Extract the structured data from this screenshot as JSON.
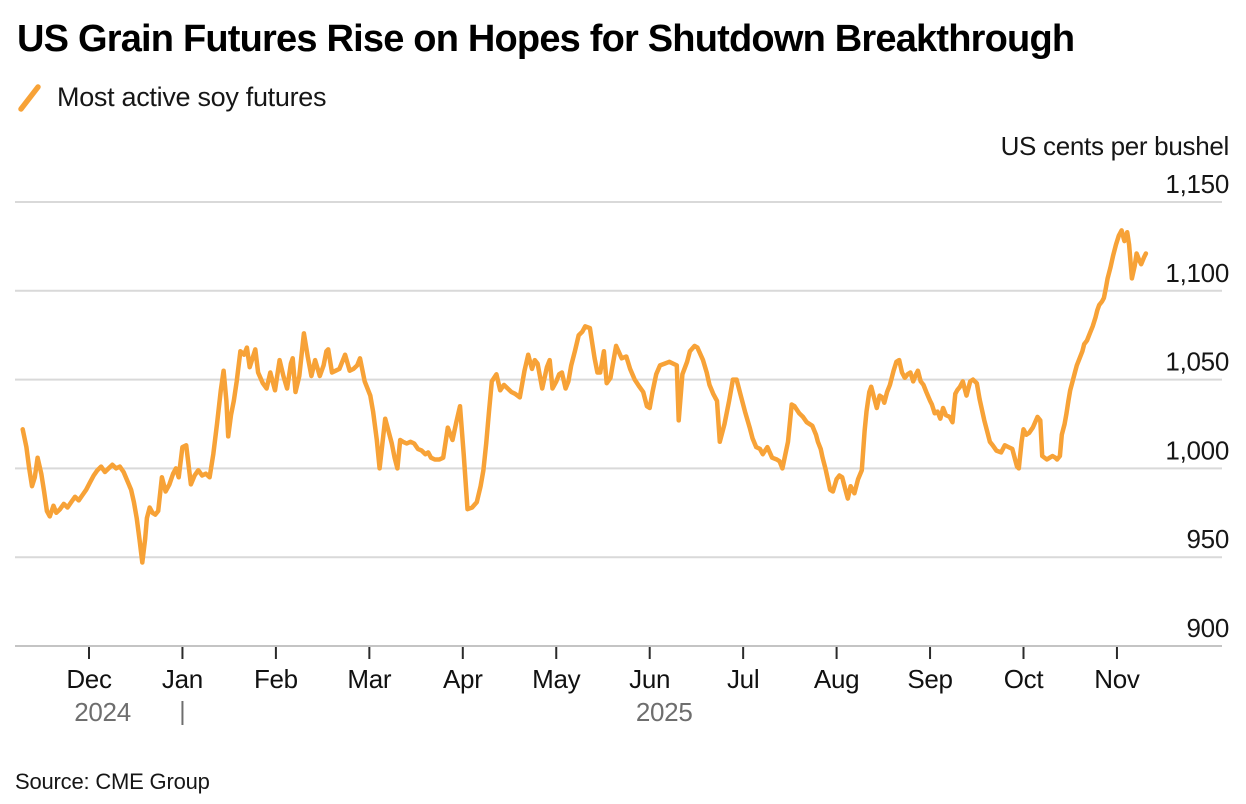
{
  "header": {
    "title": "US Grain Futures Rise on Hopes for Shutdown Breakthrough"
  },
  "legend": {
    "label": "Most active soy futures"
  },
  "axis": {
    "unit_label": "US cents per bushel",
    "y_ticks": [
      {
        "label": "1,150",
        "value": 1150
      },
      {
        "label": "1,100",
        "value": 1100
      },
      {
        "label": "1,050",
        "value": 1050
      },
      {
        "label": "1,000",
        "value": 1000
      },
      {
        "label": "950",
        "value": 950
      },
      {
        "label": "900",
        "value": 900
      }
    ],
    "x_months": [
      "Dec",
      "Jan",
      "Feb",
      "Mar",
      "Apr",
      "May",
      "Jun",
      "Jul",
      "Aug",
      "Sep",
      "Oct",
      "Nov"
    ],
    "years": [
      {
        "label": "2024"
      },
      {
        "label": "2025"
      }
    ],
    "year_divider": "|"
  },
  "source": {
    "text": "Source: CME Group"
  },
  "colors": {
    "line": "#F7A237",
    "grid": "#D9D9D9",
    "axis_line": "#C4C4C4",
    "tick": "#2B2B2B",
    "month_text": "#111111",
    "year_text": "#6E6E6E",
    "label_text": "#161616"
  },
  "chart_data": {
    "type": "line",
    "title": "US Grain Futures Rise on Hopes for Shutdown Breakthrough",
    "series_name": "Most active soy futures",
    "ylabel": "US cents per bushel",
    "ylim": [
      900,
      1150
    ],
    "y_gridlines": [
      900,
      950,
      1000,
      1050,
      1100,
      1150
    ],
    "legend_position": "top-left",
    "x_unit": "months_since_Dec_1_2024",
    "x_range": [
      -0.71,
      11.31
    ],
    "x_tick_months": [
      "Dec",
      "Jan",
      "Feb",
      "Mar",
      "Apr",
      "May",
      "Jun",
      "Jul",
      "Aug",
      "Sep",
      "Oct",
      "Nov"
    ],
    "points": [
      [
        -0.71,
        1022
      ],
      [
        -0.67,
        1012
      ],
      [
        -0.64,
        1000
      ],
      [
        -0.61,
        990
      ],
      [
        -0.58,
        995
      ],
      [
        -0.55,
        1006
      ],
      [
        -0.51,
        997
      ],
      [
        -0.48,
        987
      ],
      [
        -0.45,
        976
      ],
      [
        -0.42,
        973
      ],
      [
        -0.38,
        979
      ],
      [
        -0.35,
        975
      ],
      [
        -0.31,
        977
      ],
      [
        -0.27,
        980
      ],
      [
        -0.23,
        978
      ],
      [
        -0.19,
        981
      ],
      [
        -0.15,
        984
      ],
      [
        -0.11,
        982
      ],
      [
        -0.07,
        985
      ],
      [
        -0.03,
        988
      ],
      [
        0.01,
        992
      ],
      [
        0.05,
        996
      ],
      [
        0.09,
        999
      ],
      [
        0.13,
        1001
      ],
      [
        0.17,
        998
      ],
      [
        0.21,
        1000
      ],
      [
        0.25,
        1002
      ],
      [
        0.29,
        1000
      ],
      [
        0.33,
        1001
      ],
      [
        0.37,
        998
      ],
      [
        0.41,
        993
      ],
      [
        0.45,
        988
      ],
      [
        0.48,
        981
      ],
      [
        0.51,
        972
      ],
      [
        0.54,
        960
      ],
      [
        0.57,
        947
      ],
      [
        0.6,
        960
      ],
      [
        0.62,
        972
      ],
      [
        0.65,
        978
      ],
      [
        0.68,
        975
      ],
      [
        0.71,
        974
      ],
      [
        0.74,
        976
      ],
      [
        0.78,
        995
      ],
      [
        0.82,
        987
      ],
      [
        0.86,
        991
      ],
      [
        0.9,
        997
      ],
      [
        0.93,
        1000
      ],
      [
        0.96,
        995
      ],
      [
        1.0,
        1012
      ],
      [
        1.04,
        1013
      ],
      [
        1.09,
        991
      ],
      [
        1.13,
        996
      ],
      [
        1.17,
        999
      ],
      [
        1.21,
        996
      ],
      [
        1.25,
        997
      ],
      [
        1.29,
        995
      ],
      [
        1.33,
        1008
      ],
      [
        1.37,
        1025
      ],
      [
        1.41,
        1044
      ],
      [
        1.44,
        1055
      ],
      [
        1.47,
        1038
      ],
      [
        1.49,
        1018
      ],
      [
        1.52,
        1030
      ],
      [
        1.55,
        1038
      ],
      [
        1.58,
        1049
      ],
      [
        1.62,
        1066
      ],
      [
        1.66,
        1064
      ],
      [
        1.69,
        1068
      ],
      [
        1.72,
        1057
      ],
      [
        1.75,
        1062
      ],
      [
        1.78,
        1067
      ],
      [
        1.81,
        1054
      ],
      [
        1.86,
        1048
      ],
      [
        1.9,
        1045
      ],
      [
        1.94,
        1054
      ],
      [
        1.99,
        1044
      ],
      [
        2.04,
        1061
      ],
      [
        2.08,
        1052
      ],
      [
        2.12,
        1045
      ],
      [
        2.16,
        1059
      ],
      [
        2.18,
        1062
      ],
      [
        2.21,
        1043
      ],
      [
        2.25,
        1052
      ],
      [
        2.3,
        1076
      ],
      [
        2.34,
        1063
      ],
      [
        2.38,
        1052
      ],
      [
        2.42,
        1061
      ],
      [
        2.47,
        1052
      ],
      [
        2.51,
        1058
      ],
      [
        2.54,
        1066
      ],
      [
        2.56,
        1067
      ],
      [
        2.6,
        1054
      ],
      [
        2.64,
        1055
      ],
      [
        2.68,
        1056
      ],
      [
        2.74,
        1064
      ],
      [
        2.79,
        1055
      ],
      [
        2.83,
        1056
      ],
      [
        2.87,
        1058
      ],
      [
        2.9,
        1062
      ],
      [
        2.95,
        1049
      ],
      [
        3.01,
        1041
      ],
      [
        3.04,
        1032
      ],
      [
        3.08,
        1016
      ],
      [
        3.11,
        1000
      ],
      [
        3.14,
        1014
      ],
      [
        3.17,
        1028
      ],
      [
        3.21,
        1020
      ],
      [
        3.24,
        1014
      ],
      [
        3.27,
        1006
      ],
      [
        3.3,
        1000
      ],
      [
        3.33,
        1016
      ],
      [
        3.36,
        1015
      ],
      [
        3.4,
        1014
      ],
      [
        3.44,
        1015
      ],
      [
        3.48,
        1014
      ],
      [
        3.52,
        1011
      ],
      [
        3.56,
        1010
      ],
      [
        3.6,
        1008
      ],
      [
        3.63,
        1009
      ],
      [
        3.66,
        1006
      ],
      [
        3.7,
        1005
      ],
      [
        3.75,
        1005
      ],
      [
        3.79,
        1006
      ],
      [
        3.84,
        1023
      ],
      [
        3.89,
        1016
      ],
      [
        3.93,
        1026
      ],
      [
        3.97,
        1035
      ],
      [
        4.01,
        1008
      ],
      [
        4.05,
        977
      ],
      [
        4.1,
        978
      ],
      [
        4.15,
        981
      ],
      [
        4.19,
        990
      ],
      [
        4.22,
        999
      ],
      [
        4.25,
        1014
      ],
      [
        4.28,
        1032
      ],
      [
        4.31,
        1049
      ],
      [
        4.36,
        1053
      ],
      [
        4.4,
        1044
      ],
      [
        4.44,
        1047
      ],
      [
        4.48,
        1045
      ],
      [
        4.52,
        1043
      ],
      [
        4.56,
        1042
      ],
      [
        4.61,
        1040
      ],
      [
        4.66,
        1055
      ],
      [
        4.7,
        1064
      ],
      [
        4.74,
        1056
      ],
      [
        4.77,
        1061
      ],
      [
        4.8,
        1059
      ],
      [
        4.85,
        1045
      ],
      [
        4.9,
        1057
      ],
      [
        4.93,
        1061
      ],
      [
        4.96,
        1045
      ],
      [
        5.0,
        1049
      ],
      [
        5.03,
        1053
      ],
      [
        5.06,
        1054
      ],
      [
        5.1,
        1045
      ],
      [
        5.13,
        1049
      ],
      [
        5.16,
        1058
      ],
      [
        5.2,
        1066
      ],
      [
        5.24,
        1075
      ],
      [
        5.28,
        1077
      ],
      [
        5.31,
        1080
      ],
      [
        5.36,
        1079
      ],
      [
        5.41,
        1062
      ],
      [
        5.44,
        1054
      ],
      [
        5.47,
        1054
      ],
      [
        5.51,
        1066
      ],
      [
        5.54,
        1048
      ],
      [
        5.58,
        1051
      ],
      [
        5.6,
        1057
      ],
      [
        5.64,
        1069
      ],
      [
        5.7,
        1062
      ],
      [
        5.75,
        1063
      ],
      [
        5.79,
        1056
      ],
      [
        5.84,
        1050
      ],
      [
        5.89,
        1046
      ],
      [
        5.93,
        1043
      ],
      [
        5.97,
        1035
      ],
      [
        6.0,
        1034
      ],
      [
        6.03,
        1043
      ],
      [
        6.07,
        1053
      ],
      [
        6.11,
        1058
      ],
      [
        6.16,
        1059
      ],
      [
        6.21,
        1060
      ],
      [
        6.25,
        1059
      ],
      [
        6.29,
        1058
      ],
      [
        6.31,
        1027
      ],
      [
        6.35,
        1053
      ],
      [
        6.4,
        1060
      ],
      [
        6.43,
        1066
      ],
      [
        6.48,
        1069
      ],
      [
        6.51,
        1068
      ],
      [
        6.57,
        1061
      ],
      [
        6.61,
        1054
      ],
      [
        6.64,
        1047
      ],
      [
        6.68,
        1042
      ],
      [
        6.72,
        1038
      ],
      [
        6.75,
        1015
      ],
      [
        6.8,
        1025
      ],
      [
        6.85,
        1038
      ],
      [
        6.89,
        1050
      ],
      [
        6.93,
        1050
      ],
      [
        6.97,
        1042
      ],
      [
        7.02,
        1032
      ],
      [
        7.07,
        1023
      ],
      [
        7.1,
        1017
      ],
      [
        7.14,
        1012
      ],
      [
        7.18,
        1011
      ],
      [
        7.21,
        1008
      ],
      [
        7.26,
        1012
      ],
      [
        7.31,
        1006
      ],
      [
        7.36,
        1005
      ],
      [
        7.39,
        1004
      ],
      [
        7.42,
        1000
      ],
      [
        7.48,
        1015
      ],
      [
        7.52,
        1036
      ],
      [
        7.55,
        1035
      ],
      [
        7.6,
        1031
      ],
      [
        7.64,
        1029
      ],
      [
        7.68,
        1026
      ],
      [
        7.74,
        1024
      ],
      [
        7.78,
        1019
      ],
      [
        7.8,
        1015
      ],
      [
        7.83,
        1011
      ],
      [
        7.85,
        1006
      ],
      [
        7.88,
        1000
      ],
      [
        7.93,
        988
      ],
      [
        7.96,
        987
      ],
      [
        8.0,
        994
      ],
      [
        8.03,
        996
      ],
      [
        8.06,
        995
      ],
      [
        8.1,
        987
      ],
      [
        8.12,
        983
      ],
      [
        8.15,
        990
      ],
      [
        8.19,
        986
      ],
      [
        8.23,
        994
      ],
      [
        8.27,
        999
      ],
      [
        8.3,
        1021
      ],
      [
        8.32,
        1032
      ],
      [
        8.35,
        1043
      ],
      [
        8.37,
        1046
      ],
      [
        8.4,
        1040
      ],
      [
        8.43,
        1034
      ],
      [
        8.46,
        1041
      ],
      [
        8.49,
        1040
      ],
      [
        8.51,
        1037
      ],
      [
        8.54,
        1043
      ],
      [
        8.57,
        1047
      ],
      [
        8.61,
        1055
      ],
      [
        8.64,
        1060
      ],
      [
        8.67,
        1061
      ],
      [
        8.7,
        1054
      ],
      [
        8.73,
        1051
      ],
      [
        8.76,
        1053
      ],
      [
        8.79,
        1054
      ],
      [
        8.82,
        1049
      ],
      [
        8.85,
        1053
      ],
      [
        8.87,
        1055
      ],
      [
        8.9,
        1049
      ],
      [
        8.93,
        1047
      ],
      [
        8.96,
        1043
      ],
      [
        9.0,
        1038
      ],
      [
        9.02,
        1036
      ],
      [
        9.05,
        1031
      ],
      [
        9.08,
        1032
      ],
      [
        9.11,
        1028
      ],
      [
        9.14,
        1034
      ],
      [
        9.17,
        1030
      ],
      [
        9.21,
        1029
      ],
      [
        9.24,
        1026
      ],
      [
        9.27,
        1042
      ],
      [
        9.29,
        1044
      ],
      [
        9.32,
        1046
      ],
      [
        9.35,
        1049
      ],
      [
        9.39,
        1041
      ],
      [
        9.43,
        1049
      ],
      [
        9.46,
        1050
      ],
      [
        9.5,
        1048
      ],
      [
        9.53,
        1039
      ],
      [
        9.58,
        1027
      ],
      [
        9.61,
        1021
      ],
      [
        9.64,
        1015
      ],
      [
        9.67,
        1013
      ],
      [
        9.71,
        1010
      ],
      [
        9.76,
        1009
      ],
      [
        9.8,
        1013
      ],
      [
        9.84,
        1012
      ],
      [
        9.88,
        1011
      ],
      [
        9.91,
        1005
      ],
      [
        9.93,
        1001
      ],
      [
        9.95,
        1000
      ],
      [
        9.98,
        1015
      ],
      [
        10.0,
        1022
      ],
      [
        10.03,
        1019
      ],
      [
        10.06,
        1020
      ],
      [
        10.1,
        1023
      ],
      [
        10.15,
        1029
      ],
      [
        10.18,
        1027
      ],
      [
        10.2,
        1007
      ],
      [
        10.25,
        1005
      ],
      [
        10.28,
        1006
      ],
      [
        10.31,
        1007
      ],
      [
        10.34,
        1006
      ],
      [
        10.36,
        1005
      ],
      [
        10.39,
        1007
      ],
      [
        10.41,
        1019
      ],
      [
        10.44,
        1025
      ],
      [
        10.46,
        1031
      ],
      [
        10.48,
        1038
      ],
      [
        10.5,
        1044
      ],
      [
        10.52,
        1048
      ],
      [
        10.55,
        1054
      ],
      [
        10.57,
        1058
      ],
      [
        10.6,
        1062
      ],
      [
        10.63,
        1066
      ],
      [
        10.65,
        1070
      ],
      [
        10.68,
        1072
      ],
      [
        10.71,
        1076
      ],
      [
        10.74,
        1080
      ],
      [
        10.77,
        1085
      ],
      [
        10.79,
        1089
      ],
      [
        10.81,
        1092
      ],
      [
        10.84,
        1094
      ],
      [
        10.86,
        1096
      ],
      [
        10.88,
        1101
      ],
      [
        10.9,
        1107
      ],
      [
        10.93,
        1113
      ],
      [
        10.96,
        1120
      ],
      [
        10.99,
        1126
      ],
      [
        11.02,
        1131
      ],
      [
        11.05,
        1134
      ],
      [
        11.08,
        1128
      ],
      [
        11.11,
        1133
      ],
      [
        11.13,
        1126
      ],
      [
        11.16,
        1107
      ],
      [
        11.19,
        1114
      ],
      [
        11.21,
        1121
      ],
      [
        11.24,
        1117
      ],
      [
        11.26,
        1115
      ],
      [
        11.29,
        1119
      ],
      [
        11.31,
        1121
      ]
    ]
  }
}
